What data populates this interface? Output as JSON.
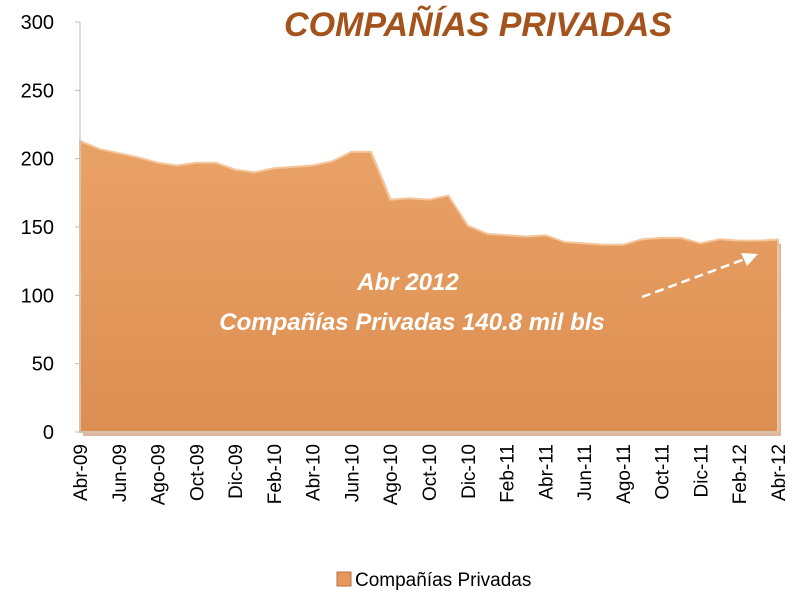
{
  "chart_data": {
    "type": "area",
    "title": "COMPAÑÍAS PRIVADAS",
    "annotations": [
      "Abr 2012",
      "Compañías Privadas 140.8 mil bls"
    ],
    "categories": [
      "Abr-09",
      null,
      "Jun-09",
      null,
      "Ago-09",
      null,
      "Oct-09",
      null,
      "Dic-09",
      null,
      "Feb-10",
      null,
      "Abr-10",
      null,
      "Jun-10",
      null,
      "Ago-10",
      null,
      "Oct-10",
      null,
      "Dic-10",
      null,
      "Feb-11",
      null,
      "Abr-11",
      null,
      "Jun-11",
      null,
      "Ago-11",
      null,
      "Oct-11",
      null,
      "Dic-11",
      null,
      "Feb-12",
      null,
      "Abr-12"
    ],
    "series": [
      {
        "name": "Compañías Privadas",
        "color": "#e5985c",
        "values": [
          213,
          207,
          204,
          201,
          197,
          195,
          197,
          197,
          192,
          190,
          193,
          194,
          195,
          198,
          205,
          205,
          170,
          171,
          170,
          173,
          151,
          145,
          144,
          143,
          144,
          139,
          138,
          137,
          137,
          141,
          142,
          142,
          138,
          141,
          140,
          140,
          140.8
        ]
      }
    ],
    "ylim": [
      0,
      300
    ],
    "yticks": [
      0,
      50,
      100,
      150,
      200,
      250,
      300
    ]
  }
}
